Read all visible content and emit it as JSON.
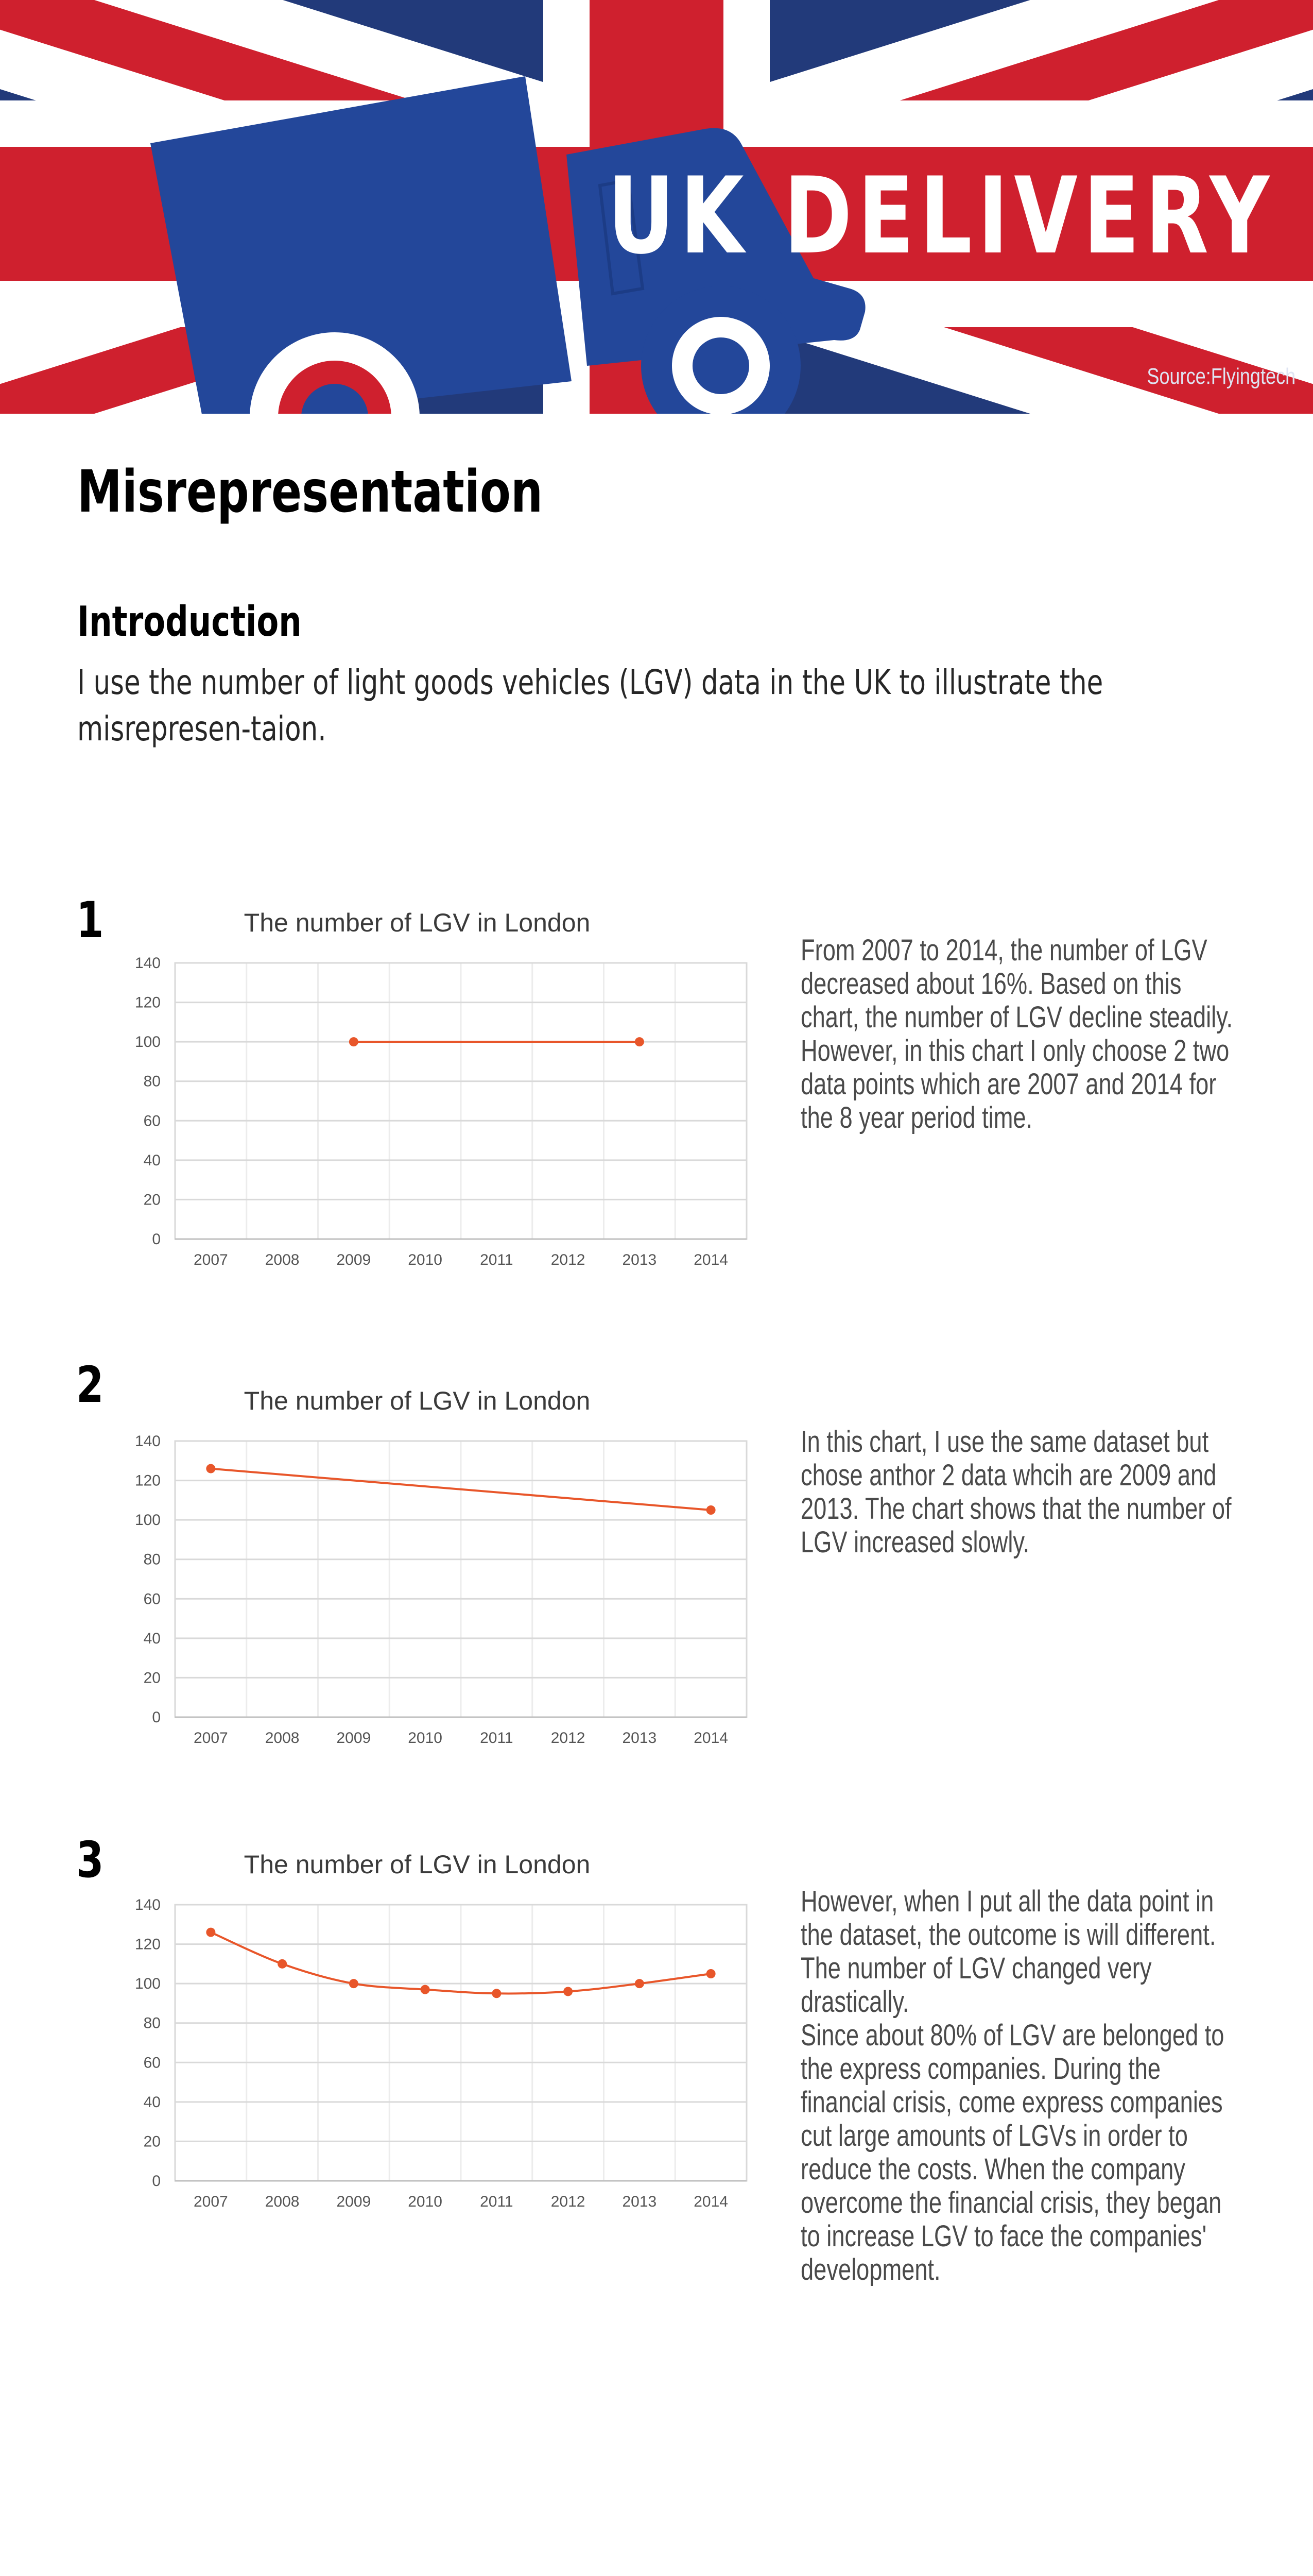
{
  "banner": {
    "title": "UK DELIVERY",
    "source": "Source:Flyingtech",
    "colors": {
      "blue": "#223a7a",
      "red": "#cf202e",
      "white": "#ffffff",
      "truck": "#23479a"
    }
  },
  "page": {
    "title": "Misrepresentation",
    "intro_heading": "Introduction",
    "intro_text": "I use the number of light goods vehicles (LGV) data in the UK to illustrate the misrepresen-taion."
  },
  "sections": [
    {
      "number": "1",
      "description": [
        "From 2007 to 2014, the number of LGV decreased about 16%. Based on this chart, the number of LGV decline steadily.",
        "However, in this chart I only choose 2 two data points which are 2007 and 2014 for the 8 year period time."
      ]
    },
    {
      "number": "2",
      "description": [
        "In this chart, I use the same dataset but chose anthor 2 data whcih are 2009 and 2013. The chart shows that the number of LGV increased slowly."
      ]
    },
    {
      "number": "3",
      "description": [
        "However, when I put all the data point in the dataset, the outcome is will different. The number of LGV changed very drastically.",
        "Since about 80% of LGV are belonged to the express companies. During the financial crisis, come express companies cut large amounts of LGVs in order to reduce the costs. When the company overcome the financial crisis, they began to increase LGV to face the companies' development."
      ]
    }
  ],
  "chart_data": [
    {
      "type": "line",
      "title": "The number of LGV in London",
      "categories": [
        "2007",
        "2008",
        "2009",
        "2010",
        "2011",
        "2012",
        "2013",
        "2014"
      ],
      "points": [
        {
          "x": "2009",
          "y": 100
        },
        {
          "x": "2013",
          "y": 100
        }
      ],
      "ylim": [
        0,
        140
      ],
      "yticks": [
        0,
        20,
        40,
        60,
        80,
        100,
        120,
        140
      ],
      "grid": true,
      "color": "#e8562a"
    },
    {
      "type": "line",
      "title": "The number of LGV in London",
      "categories": [
        "2007",
        "2008",
        "2009",
        "2010",
        "2011",
        "2012",
        "2013",
        "2014"
      ],
      "points": [
        {
          "x": "2007",
          "y": 126
        },
        {
          "x": "2014",
          "y": 105
        }
      ],
      "ylim": [
        0,
        140
      ],
      "yticks": [
        0,
        20,
        40,
        60,
        80,
        100,
        120,
        140
      ],
      "grid": true,
      "color": "#e8562a"
    },
    {
      "type": "line",
      "title": "The number of LGV in London",
      "categories": [
        "2007",
        "2008",
        "2009",
        "2010",
        "2011",
        "2012",
        "2013",
        "2014"
      ],
      "points": [
        {
          "x": "2007",
          "y": 126
        },
        {
          "x": "2008",
          "y": 110
        },
        {
          "x": "2009",
          "y": 100
        },
        {
          "x": "2010",
          "y": 97
        },
        {
          "x": "2011",
          "y": 95
        },
        {
          "x": "2012",
          "y": 96
        },
        {
          "x": "2013",
          "y": 100
        },
        {
          "x": "2014",
          "y": 105
        }
      ],
      "ylim": [
        0,
        140
      ],
      "yticks": [
        0,
        20,
        40,
        60,
        80,
        100,
        120,
        140
      ],
      "grid": true,
      "color": "#e8562a"
    }
  ]
}
